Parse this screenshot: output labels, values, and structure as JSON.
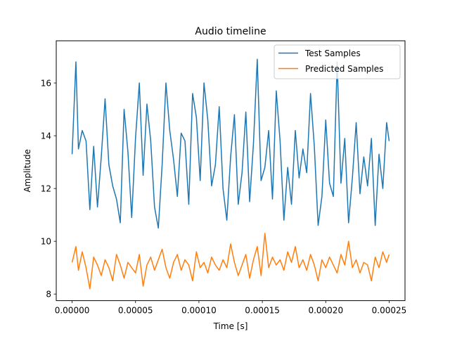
{
  "chart_data": {
    "type": "line",
    "title": "Audio timeline",
    "xlabel": "Time [s]",
    "ylabel": "Amplitude",
    "xlim": [
      -1.25e-05,
      0.0002625
    ],
    "ylim": [
      7.75,
      17.6
    ],
    "xticks": [
      0.0,
      5e-05,
      0.0001,
      0.00015,
      0.0002,
      0.00025
    ],
    "xtick_labels": [
      "0.00000",
      "0.00005",
      "0.00010",
      "0.00015",
      "0.00020",
      "0.00025"
    ],
    "yticks": [
      8,
      10,
      12,
      14,
      16
    ],
    "ytick_labels": [
      "8",
      "10",
      "12",
      "14",
      "16"
    ],
    "grid": false,
    "legend_position": "top-right",
    "series": [
      {
        "name": "Test Samples",
        "color": "#1f77b4",
        "x": [
          0.0,
          3e-06,
          5e-06,
          8e-06,
          1.1e-05,
          1.4e-05,
          1.7e-05,
          2e-05,
          2.3e-05,
          2.6e-05,
          2.9e-05,
          3.2e-05,
          3.5e-05,
          3.8e-05,
          4.1e-05,
          4.4e-05,
          4.7e-05,
          5e-05,
          5.3e-05,
          5.6e-05,
          5.9e-05,
          6.2e-05,
          6.5e-05,
          6.8e-05,
          7.1e-05,
          7.4e-05,
          7.7e-05,
          8e-05,
          8.3e-05,
          8.6e-05,
          8.9e-05,
          9.2e-05,
          9.5e-05,
          9.8e-05,
          0.000101,
          0.000104,
          0.000107,
          0.00011,
          0.000113,
          0.000116,
          0.000119,
          0.000122,
          0.000125,
          0.000128,
          0.000131,
          0.000134,
          0.000137,
          0.00014,
          0.000143,
          0.000146,
          0.000149,
          0.000152,
          0.000155,
          0.000158,
          0.000161,
          0.000164,
          0.000167,
          0.00017,
          0.000173,
          0.000176,
          0.000179,
          0.000182,
          0.000185,
          0.000188,
          0.000191,
          0.000194,
          0.000197,
          0.0002,
          0.000203,
          0.000206,
          0.000209,
          0.000212,
          0.000215,
          0.000218,
          0.000221,
          0.000224,
          0.000227,
          0.00023,
          0.000233,
          0.000236,
          0.000239,
          0.000242,
          0.000245,
          0.000248,
          0.00025
        ],
        "values": [
          13.3,
          16.8,
          13.5,
          14.2,
          13.8,
          11.2,
          13.6,
          11.3,
          13.2,
          15.4,
          12.9,
          12.1,
          11.6,
          10.7,
          15.0,
          13.4,
          10.9,
          13.9,
          16.0,
          12.5,
          15.2,
          13.8,
          11.3,
          10.5,
          12.9,
          16.0,
          14.2,
          13.1,
          11.7,
          14.1,
          13.8,
          11.4,
          15.6,
          14.7,
          12.3,
          16.0,
          14.6,
          12.1,
          12.9,
          15.1,
          12.0,
          10.8,
          13.2,
          14.8,
          11.4,
          12.6,
          14.9,
          11.5,
          13.7,
          16.9,
          12.3,
          12.8,
          14.2,
          11.6,
          15.7,
          13.8,
          10.8,
          12.8,
          11.4,
          14.2,
          12.4,
          13.5,
          12.6,
          15.6,
          13.6,
          10.6,
          11.7,
          14.6,
          12.2,
          11.7,
          16.8,
          12.2,
          13.9,
          10.7,
          12.4,
          14.5,
          11.8,
          13.2,
          12.1,
          13.9,
          10.6,
          13.3,
          12.0,
          14.5,
          13.8
        ]
      },
      {
        "name": "Predicted Samples",
        "color": "#ff7f0e",
        "x": [
          0.0,
          3e-06,
          5e-06,
          8e-06,
          1.1e-05,
          1.4e-05,
          1.7e-05,
          2e-05,
          2.3e-05,
          2.6e-05,
          2.9e-05,
          3.2e-05,
          3.5e-05,
          3.8e-05,
          4.1e-05,
          4.4e-05,
          4.7e-05,
          5e-05,
          5.3e-05,
          5.6e-05,
          5.9e-05,
          6.2e-05,
          6.5e-05,
          6.8e-05,
          7.1e-05,
          7.4e-05,
          7.7e-05,
          8e-05,
          8.3e-05,
          8.6e-05,
          8.9e-05,
          9.2e-05,
          9.5e-05,
          9.8e-05,
          0.000101,
          0.000104,
          0.000107,
          0.00011,
          0.000113,
          0.000116,
          0.000119,
          0.000122,
          0.000125,
          0.000128,
          0.000131,
          0.000134,
          0.000137,
          0.00014,
          0.000143,
          0.000146,
          0.000149,
          0.000152,
          0.000155,
          0.000158,
          0.000161,
          0.000164,
          0.000167,
          0.00017,
          0.000173,
          0.000176,
          0.000179,
          0.000182,
          0.000185,
          0.000188,
          0.000191,
          0.000194,
          0.000197,
          0.0002,
          0.000203,
          0.000206,
          0.000209,
          0.000212,
          0.000215,
          0.000218,
          0.000221,
          0.000224,
          0.000227,
          0.00023,
          0.000233,
          0.000236,
          0.000239,
          0.000242,
          0.000245,
          0.000248,
          0.00025
        ],
        "values": [
          9.2,
          9.8,
          8.9,
          9.6,
          9.0,
          8.2,
          9.4,
          9.1,
          8.7,
          9.3,
          9.0,
          8.5,
          9.5,
          9.1,
          8.6,
          9.2,
          9.0,
          8.8,
          9.5,
          8.3,
          9.1,
          9.4,
          8.9,
          9.3,
          9.7,
          9.0,
          8.6,
          9.2,
          9.5,
          8.9,
          9.3,
          9.1,
          8.5,
          9.6,
          9.0,
          9.2,
          8.8,
          9.4,
          9.1,
          8.9,
          9.3,
          9.0,
          9.9,
          9.2,
          8.7,
          9.1,
          9.5,
          8.6,
          9.3,
          9.8,
          8.7,
          10.3,
          9.0,
          9.4,
          9.1,
          9.3,
          8.9,
          9.6,
          9.2,
          9.8,
          9.0,
          9.3,
          8.9,
          9.5,
          9.1,
          8.5,
          9.3,
          9.0,
          9.4,
          9.1,
          8.8,
          9.5,
          9.1,
          10.0,
          9.0,
          9.3,
          8.8,
          9.2,
          9.1,
          8.5,
          9.4,
          9.0,
          9.6,
          9.2,
          9.5
        ]
      }
    ]
  }
}
